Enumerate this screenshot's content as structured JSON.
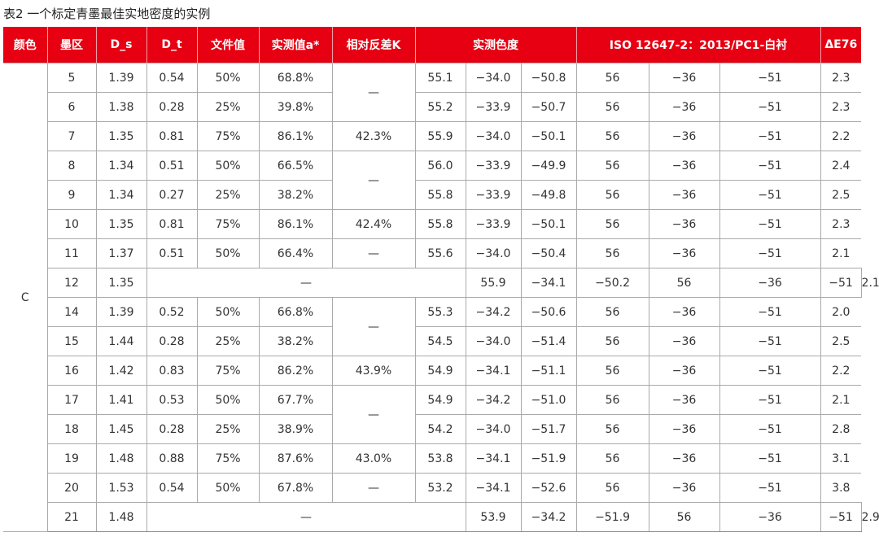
{
  "title": "表2 一个标定青墨最佳实地密度的实例",
  "header": [
    "颜色",
    "墨区",
    "D_s",
    "D_t",
    "文件值",
    "实测值a*",
    "相对反差K",
    "实测色度",
    "ISO 12647-2：2013/PC1-白衬",
    "ΔE76"
  ],
  "color": "C",
  "accent": "#e60012",
  "rows": [
    {
      "zone": "5",
      "ds": "1.39",
      "dt": "0.54",
      "file": "50%",
      "meas": "68.8%",
      "k": "—",
      "k_span": 2,
      "lab": [
        "55.1",
        "−34.0",
        "−50.8"
      ],
      "iso": [
        "56",
        "−36",
        "−51"
      ],
      "de": "2.3"
    },
    {
      "zone": "6",
      "ds": "1.38",
      "dt": "0.28",
      "file": "25%",
      "meas": "39.8%",
      "lab": [
        "55.2",
        "−33.9",
        "−50.7"
      ],
      "iso": [
        "56",
        "−36",
        "−51"
      ],
      "de": "2.3"
    },
    {
      "zone": "7",
      "ds": "1.35",
      "dt": "0.81",
      "file": "75%",
      "meas": "86.1%",
      "k": "42.3%",
      "k_span": 1,
      "lab": [
        "55.9",
        "−34.0",
        "−50.1"
      ],
      "iso": [
        "56",
        "−36",
        "−51"
      ],
      "de": "2.2"
    },
    {
      "zone": "8",
      "ds": "1.34",
      "dt": "0.51",
      "file": "50%",
      "meas": "66.5%",
      "k": "—",
      "k_span": 2,
      "lab": [
        "56.0",
        "−33.9",
        "−49.9"
      ],
      "iso": [
        "56",
        "−36",
        "−51"
      ],
      "de": "2.4"
    },
    {
      "zone": "9",
      "ds": "1.34",
      "dt": "0.27",
      "file": "25%",
      "meas": "38.2%",
      "lab": [
        "55.8",
        "−33.9",
        "−49.8"
      ],
      "iso": [
        "56",
        "−36",
        "−51"
      ],
      "de": "2.5"
    },
    {
      "zone": "10",
      "ds": "1.35",
      "dt": "0.81",
      "file": "75%",
      "meas": "86.1%",
      "k": "42.4%",
      "k_span": 1,
      "lab": [
        "55.8",
        "−33.9",
        "−50.1"
      ],
      "iso": [
        "56",
        "−36",
        "−51"
      ],
      "de": "2.3"
    },
    {
      "zone": "11",
      "ds": "1.37",
      "dt": "0.51",
      "file": "50%",
      "meas": "66.4%",
      "k": "—",
      "k_span": 1,
      "lab": [
        "55.6",
        "−34.0",
        "−50.4"
      ],
      "iso": [
        "56",
        "−36",
        "−51"
      ],
      "de": "2.1"
    },
    {
      "zone": "12",
      "ds": "1.35",
      "merged": "—",
      "lab": [
        "55.9",
        "−34.1",
        "−50.2"
      ],
      "iso": [
        "56",
        "−36",
        "−51"
      ],
      "de": "2.1"
    },
    {
      "zone": "14",
      "ds": "1.39",
      "dt": "0.52",
      "file": "50%",
      "meas": "66.8%",
      "k": "—",
      "k_span": 2,
      "lab": [
        "55.3",
        "−34.2",
        "−50.6"
      ],
      "iso": [
        "56",
        "−36",
        "−51"
      ],
      "de": "2.0"
    },
    {
      "zone": "15",
      "ds": "1.44",
      "dt": "0.28",
      "file": "25%",
      "meas": "38.2%",
      "lab": [
        "54.5",
        "−34.0",
        "−51.4"
      ],
      "iso": [
        "56",
        "−36",
        "−51"
      ],
      "de": "2.5"
    },
    {
      "zone": "16",
      "ds": "1.42",
      "dt": "0.83",
      "file": "75%",
      "meas": "86.2%",
      "k": "43.9%",
      "k_span": 1,
      "lab": [
        "54.9",
        "−34.1",
        "−51.1"
      ],
      "iso": [
        "56",
        "−36",
        "−51"
      ],
      "de": "2.2"
    },
    {
      "zone": "17",
      "ds": "1.41",
      "dt": "0.53",
      "file": "50%",
      "meas": "67.7%",
      "k": "—",
      "k_span": 2,
      "lab": [
        "54.9",
        "−34.2",
        "−51.0"
      ],
      "iso": [
        "56",
        "−36",
        "−51"
      ],
      "de": "2.1"
    },
    {
      "zone": "18",
      "ds": "1.45",
      "dt": "0.28",
      "file": "25%",
      "meas": "38.9%",
      "lab": [
        "54.2",
        "−34.0",
        "−51.7"
      ],
      "iso": [
        "56",
        "−36",
        "−51"
      ],
      "de": "2.8"
    },
    {
      "zone": "19",
      "ds": "1.48",
      "dt": "0.88",
      "file": "75%",
      "meas": "87.6%",
      "k": "43.0%",
      "k_span": 1,
      "lab": [
        "53.8",
        "−34.1",
        "−51.9"
      ],
      "iso": [
        "56",
        "−36",
        "−51"
      ],
      "de": "3.1"
    },
    {
      "zone": "20",
      "ds": "1.53",
      "dt": "0.54",
      "file": "50%",
      "meas": "67.8%",
      "k": "—",
      "k_span": 1,
      "lab": [
        "53.2",
        "−34.1",
        "−52.6"
      ],
      "iso": [
        "56",
        "−36",
        "−51"
      ],
      "de": "3.8"
    },
    {
      "zone": "21",
      "ds": "1.48",
      "merged": "—",
      "lab": [
        "53.9",
        "−34.2",
        "−51.9"
      ],
      "iso": [
        "56",
        "−36",
        "−51"
      ],
      "de": "2.9"
    }
  ]
}
